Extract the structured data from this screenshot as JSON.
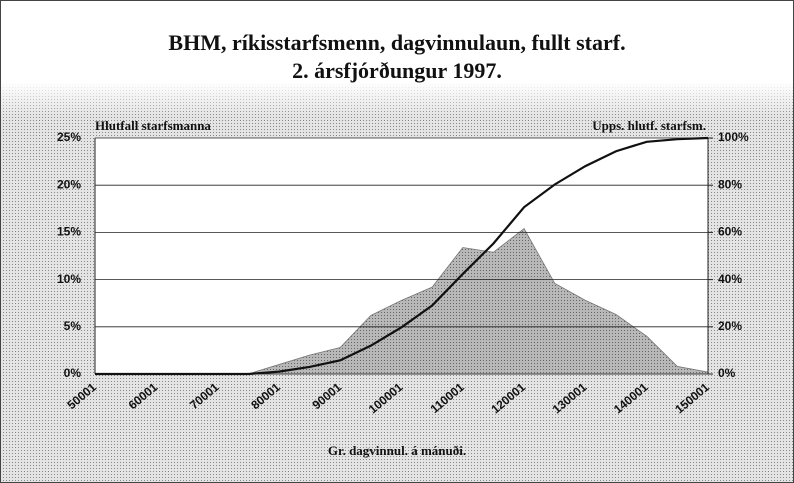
{
  "chart_data": {
    "type": "area_line",
    "title": "BHM, ríkisstarfsmenn, dagvinnulaun, fullt starf.",
    "subtitle": "2. ársfjórðungur 1997.",
    "y_label": "Hlutfall starfsmanna",
    "y2_label": "Upps. hlutf. starfsm.",
    "x_label": "Gr. dagvinnul. á mánuði.",
    "categories": [
      "50001",
      null,
      "60001",
      null,
      "70001",
      null,
      "80001",
      null,
      "90001",
      null,
      "100001",
      null,
      "110001",
      null,
      "120001",
      null,
      "130001",
      null,
      "140001",
      null,
      "150001"
    ],
    "series": [
      {
        "name": "Hlutfall starfsmanna",
        "color": "#a8a8a8",
        "values": [
          0,
          0,
          0,
          0,
          0,
          0,
          1,
          2,
          2.8,
          6.2,
          7.8,
          9.2,
          13.4,
          12.9,
          15.4,
          9.6,
          7.8,
          6.3,
          4,
          0.8,
          0.2
        ]
      },
      {
        "name": "Upps. hlutf. starfsm.",
        "color": "#111111",
        "axis": "y2",
        "values": [
          0,
          0,
          0,
          0,
          0,
          0,
          1,
          3,
          5.8,
          12,
          19.8,
          29,
          42.4,
          55.3,
          70.7,
          80.3,
          88.1,
          94.4,
          98.4,
          99.5,
          100
        ]
      }
    ],
    "ylim": [
      0,
      25
    ],
    "yticks": [
      {
        "value": 0,
        "label": "0%"
      },
      {
        "value": 5,
        "label": "5%"
      },
      {
        "value": 10,
        "label": "10%"
      },
      {
        "value": 15,
        "label": "15%"
      },
      {
        "value": 20,
        "label": "20%"
      },
      {
        "value": 25,
        "label": "25%"
      }
    ],
    "y2lim": [
      0,
      100
    ],
    "y2ticks": [
      {
        "value": 0,
        "label": "0%"
      },
      {
        "value": 20,
        "label": "20%"
      },
      {
        "value": 40,
        "label": "40%"
      },
      {
        "value": 60,
        "label": "60%"
      },
      {
        "value": 80,
        "label": "80%"
      },
      {
        "value": 100,
        "label": "100%"
      }
    ],
    "grid": true
  }
}
